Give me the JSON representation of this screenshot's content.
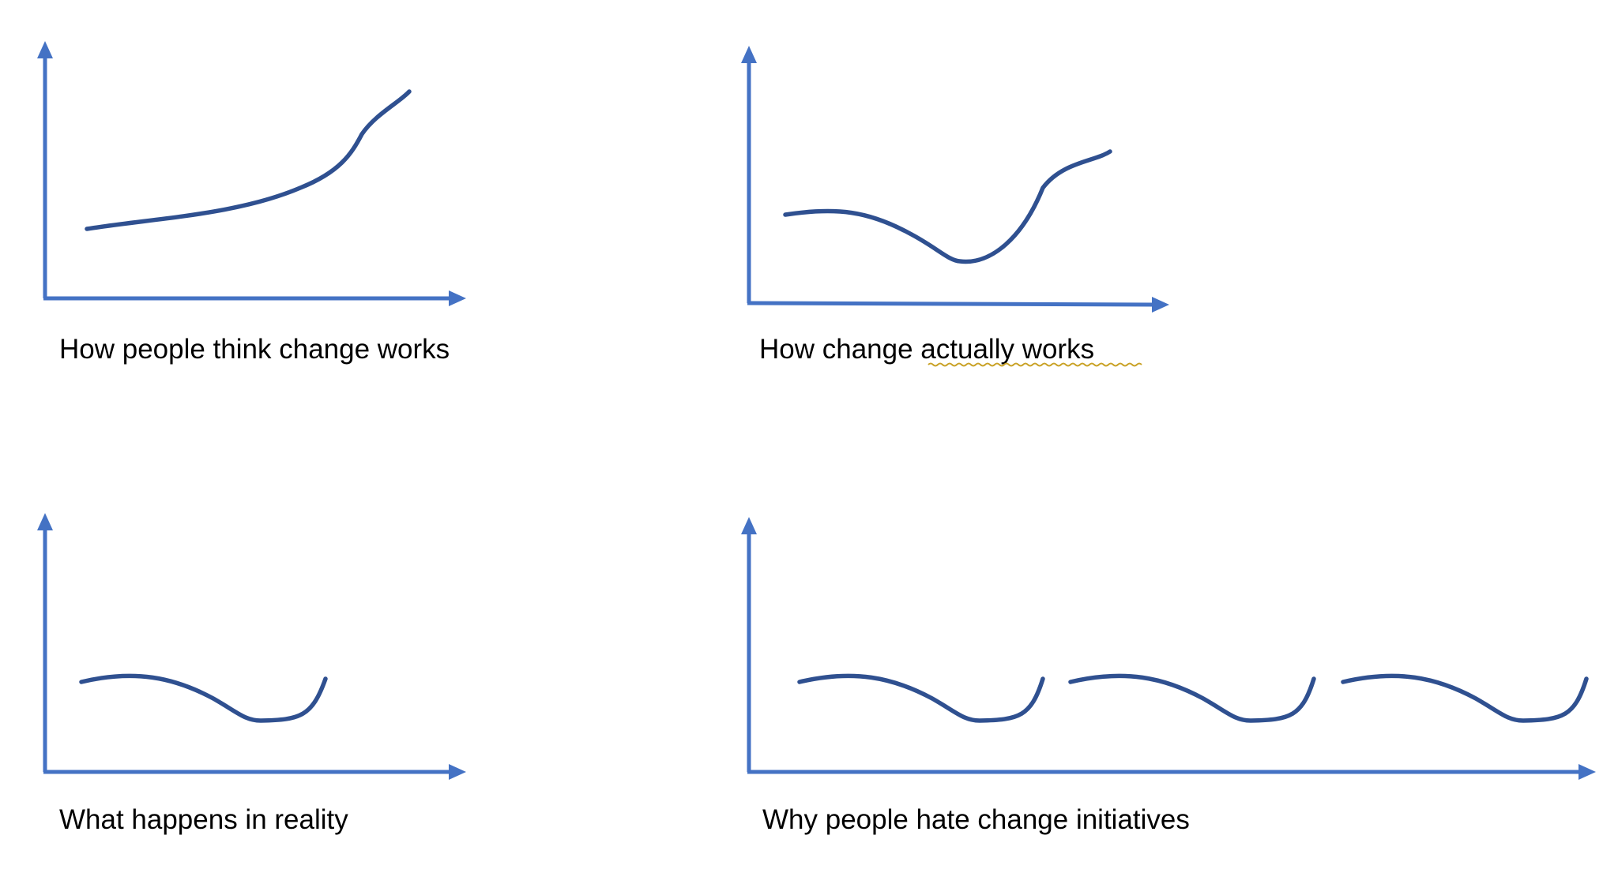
{
  "colors": {
    "axis": "#4472C4",
    "curve": "#2F5090",
    "text": "#000000",
    "spellcheck_underline": "#C9A227",
    "background": "#ffffff"
  },
  "panels": [
    {
      "caption": "How people think change works"
    },
    {
      "caption": "How change actually works",
      "underlined_words": "actually works"
    },
    {
      "caption": "What happens in reality"
    },
    {
      "caption": "Why people hate change initiatives"
    }
  ]
}
